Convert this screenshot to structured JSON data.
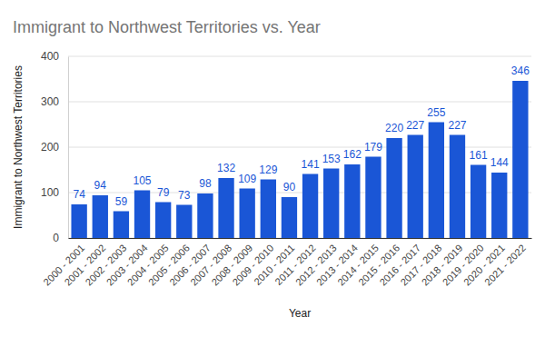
{
  "chart_data": {
    "type": "bar",
    "title": "Immigrant to Northwest Territories vs. Year",
    "x_label": "Year",
    "y_label": "Immigrant to Northwest Territories",
    "categories": [
      "2000 - 2001",
      "2001 - 2002",
      "2002 - 2003",
      "2003 - 2004",
      "2004 - 2005",
      "2005 - 2006",
      "2006 - 2007",
      "2007 - 2008",
      "2008 - 2009",
      "2009 - 2010",
      "2010 - 2011",
      "2011 - 2012",
      "2012 - 2013",
      "2013 - 2014",
      "2014 - 2015",
      "2015 - 2016",
      "2016 - 2017",
      "2017 - 2018",
      "2018 - 2019",
      "2019 - 2020",
      "2020 - 2021",
      "2021 - 2022"
    ],
    "values": [
      74,
      94,
      59,
      105,
      79,
      73,
      98,
      132,
      109,
      129,
      90,
      141,
      153,
      162,
      179,
      220,
      227,
      255,
      227,
      161,
      144,
      346
    ],
    "color": "#1a56d6",
    "ylim": [
      0,
      400
    ],
    "yticks": [
      0,
      100,
      200,
      300,
      400
    ],
    "grid": true,
    "data_labels": true
  }
}
